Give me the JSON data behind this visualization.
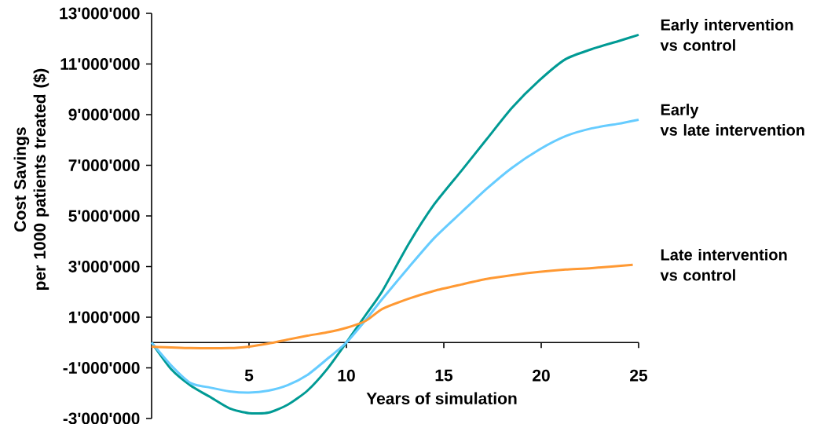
{
  "chart_data": {
    "type": "line",
    "xlabel": "Years of simulation",
    "ylabel": "Cost Savings\nper 1000 patients treated ($)",
    "xlim": [
      0,
      25
    ],
    "xticks": [
      5,
      10,
      15,
      20,
      25
    ],
    "ylim": [
      -3000000,
      13000000
    ],
    "yticks": [
      {
        "value": -3000000,
        "label": "-3'000'000"
      },
      {
        "value": -1000000,
        "label": "-1'000'000"
      },
      {
        "value": 1000000,
        "label": "1'000'000"
      },
      {
        "value": 3000000,
        "label": "3'000'000"
      },
      {
        "value": 5000000,
        "label": "5'000'000"
      },
      {
        "value": 7000000,
        "label": "7'000'000"
      },
      {
        "value": 9000000,
        "label": "9'000'000"
      },
      {
        "value": 11000000,
        "label": "11'000'000"
      },
      {
        "value": 13000000,
        "label": "13'000'000"
      }
    ],
    "series": [
      {
        "name": "Early intervention\nvs control",
        "color": "#009a94",
        "x": [
          0,
          1,
          2,
          3,
          4,
          5,
          6,
          7,
          8,
          9,
          10,
          11,
          11.85,
          13.2,
          14.5,
          15.9,
          17.2,
          18.5,
          19.9,
          21.25,
          22.6,
          23.95,
          25
        ],
        "values": [
          0,
          -1050000,
          -1700000,
          -2150000,
          -2600000,
          -2790000,
          -2770000,
          -2450000,
          -1900000,
          -1060000,
          0,
          1100000,
          2040000,
          3900000,
          5450000,
          6780000,
          8030000,
          9270000,
          10350000,
          11190000,
          11590000,
          11900000,
          12150000
        ]
      },
      {
        "name": "Early\nvs late intervention",
        "color": "#66ccff",
        "x": [
          0,
          1,
          2,
          3,
          4,
          5,
          6,
          7,
          8,
          9,
          10,
          11,
          11.85,
          13.2,
          14.5,
          15.9,
          17.2,
          18.5,
          19.9,
          21.25,
          22.6,
          23.95,
          25
        ],
        "values": [
          0,
          -900000,
          -1600000,
          -1780000,
          -1930000,
          -1980000,
          -1900000,
          -1680000,
          -1280000,
          -660000,
          0,
          900000,
          1730000,
          2970000,
          4120000,
          5140000,
          6070000,
          6900000,
          7620000,
          8150000,
          8460000,
          8640000,
          8800000
        ]
      },
      {
        "name": "Late intervention\nvs control",
        "color": "#ff9933",
        "x": [
          0,
          2,
          4,
          5,
          6,
          7,
          8,
          9,
          10,
          11,
          11.85,
          13.2,
          14.5,
          15.9,
          17.2,
          18.5,
          19.9,
          21.25,
          22.6,
          24.7
        ],
        "values": [
          -160000,
          -220000,
          -220000,
          -160000,
          -40000,
          120000,
          270000,
          400000,
          580000,
          860000,
          1330000,
          1730000,
          2040000,
          2290000,
          2510000,
          2660000,
          2790000,
          2880000,
          2940000,
          3070000
        ]
      }
    ]
  }
}
